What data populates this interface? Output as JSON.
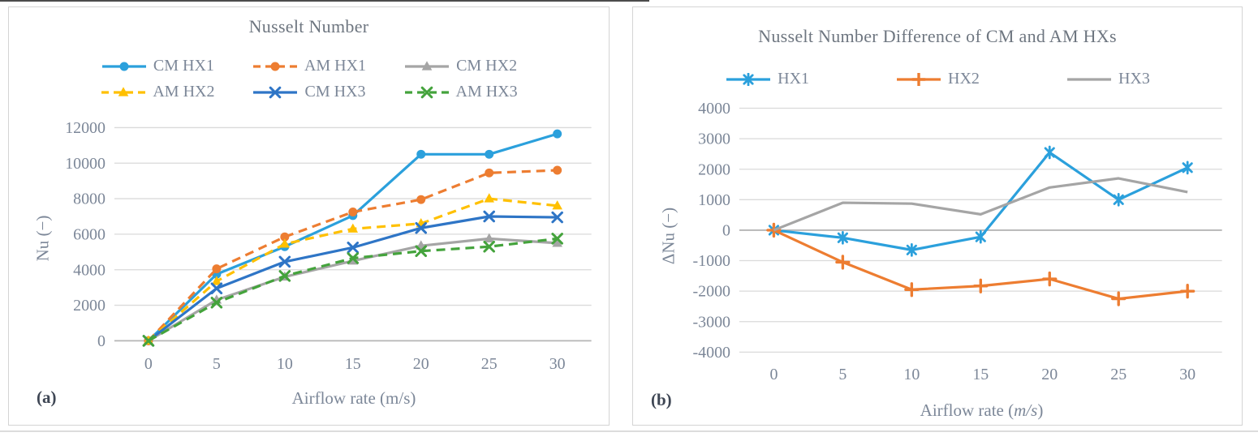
{
  "chart_data": [
    {
      "type": "line",
      "panel_label": "(a)",
      "title": "Nusselt Number",
      "xlabel": "Airflow rate (m/s)",
      "xlabel_pre": "Airflow rate (m/s)",
      "xlabel_italic": "",
      "xlabel_post": "",
      "ylabel": "Nu (−)",
      "x": [
        0,
        5,
        10,
        15,
        20,
        25,
        30
      ],
      "xticks": [
        "0",
        "5",
        "10",
        "15",
        "20",
        "25",
        "30"
      ],
      "ylim": [
        0,
        12000
      ],
      "yticks": [
        0,
        2000,
        4000,
        6000,
        8000,
        10000,
        12000
      ],
      "grid": true,
      "legend_position": "top",
      "series": [
        {
          "name": "CM HX1",
          "color": "#2BA0DC",
          "dash": "solid",
          "marker": "circle",
          "values": [
            0,
            3750,
            5300,
            7050,
            10500,
            10500,
            11650
          ]
        },
        {
          "name": "AM HX1",
          "color": "#ED7D31",
          "dash": "dashed",
          "marker": "circle",
          "values": [
            0,
            4050,
            5850,
            7250,
            7950,
            9450,
            9600
          ]
        },
        {
          "name": "CM HX2",
          "color": "#A5A5A5",
          "dash": "solid",
          "marker": "triangle",
          "values": [
            0,
            2300,
            3600,
            4500,
            5350,
            5750,
            5500
          ]
        },
        {
          "name": "AM HX2",
          "color": "#FFC000",
          "dash": "dashed",
          "marker": "triangle",
          "values": [
            0,
            3350,
            5450,
            6300,
            6600,
            8000,
            7600
          ]
        },
        {
          "name": "CM HX3",
          "color": "#2E75C6",
          "dash": "solid",
          "marker": "x",
          "values": [
            0,
            2950,
            4450,
            5250,
            6350,
            7000,
            6950
          ]
        },
        {
          "name": "AM HX3",
          "color": "#44A33C",
          "dash": "dashed",
          "marker": "x",
          "values": [
            0,
            2150,
            3650,
            4650,
            5050,
            5300,
            5750
          ]
        }
      ]
    },
    {
      "type": "line",
      "panel_label": "(b)",
      "title": "Nusselt Number Difference of CM and AM HXs",
      "xlabel": "Airflow rate (m/s)",
      "xlabel_pre": "Airflow rate (",
      "xlabel_italic": "m/s",
      "xlabel_post": ")",
      "ylabel": "ΔNu (−)",
      "x": [
        0,
        5,
        10,
        15,
        20,
        25,
        30
      ],
      "xticks": [
        "0",
        "5",
        "10",
        "15",
        "20",
        "25",
        "30"
      ],
      "ylim": [
        -4000,
        4000
      ],
      "yticks": [
        -4000,
        -3000,
        -2000,
        -1000,
        0,
        1000,
        2000,
        3000,
        4000
      ],
      "grid": true,
      "legend_position": "top",
      "series": [
        {
          "name": "HX1",
          "color": "#2BA0DC",
          "dash": "solid",
          "marker": "asterisk",
          "values": [
            0,
            -250,
            -650,
            -220,
            2550,
            1000,
            2050
          ]
        },
        {
          "name": "HX2",
          "color": "#ED7D31",
          "dash": "solid",
          "marker": "plus",
          "values": [
            0,
            -1050,
            -1950,
            -1830,
            -1600,
            -2250,
            -2000
          ]
        },
        {
          "name": "HX3",
          "color": "#A5A5A5",
          "dash": "solid",
          "marker": "none",
          "values": [
            0,
            900,
            870,
            520,
            1400,
            1700,
            1250
          ]
        }
      ]
    }
  ],
  "colors": {
    "gridline": "#dadada",
    "zero_line": "#b6b6b6",
    "tick_text": "#7c8798",
    "title_text": "#6e7680",
    "corner_text": "#3e4654"
  }
}
